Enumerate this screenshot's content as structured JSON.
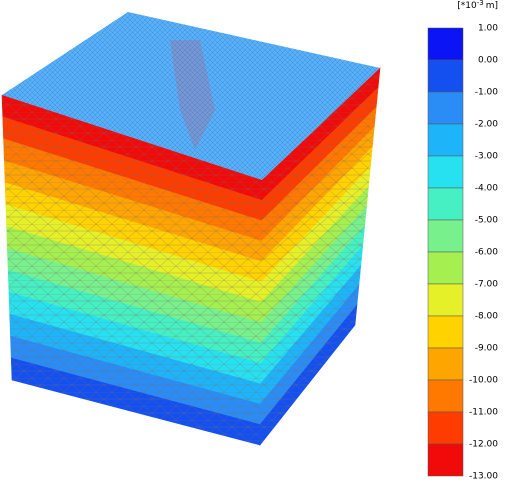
{
  "legend": {
    "unit_prefix": "[*10",
    "unit_exponent": "-3",
    "unit_suffix": "m]",
    "labels": [
      "1.00",
      "0.00",
      "-1.00",
      "-2.00",
      "-3.00",
      "-4.00",
      "-5.00",
      "-6.00",
      "-7.00",
      "-8.00",
      "-9.00",
      "-10.00",
      "-11.00",
      "-12.00",
      "-13.00"
    ],
    "colors": [
      "#0a14f5",
      "#1450f0",
      "#2a8cf5",
      "#1eb4fa",
      "#28e1f0",
      "#46f0c3",
      "#78f08c",
      "#a5f050",
      "#e6f028",
      "#ffd200",
      "#ffa500",
      "#ff7800",
      "#ff3c00",
      "#f00a0a"
    ]
  }
}
